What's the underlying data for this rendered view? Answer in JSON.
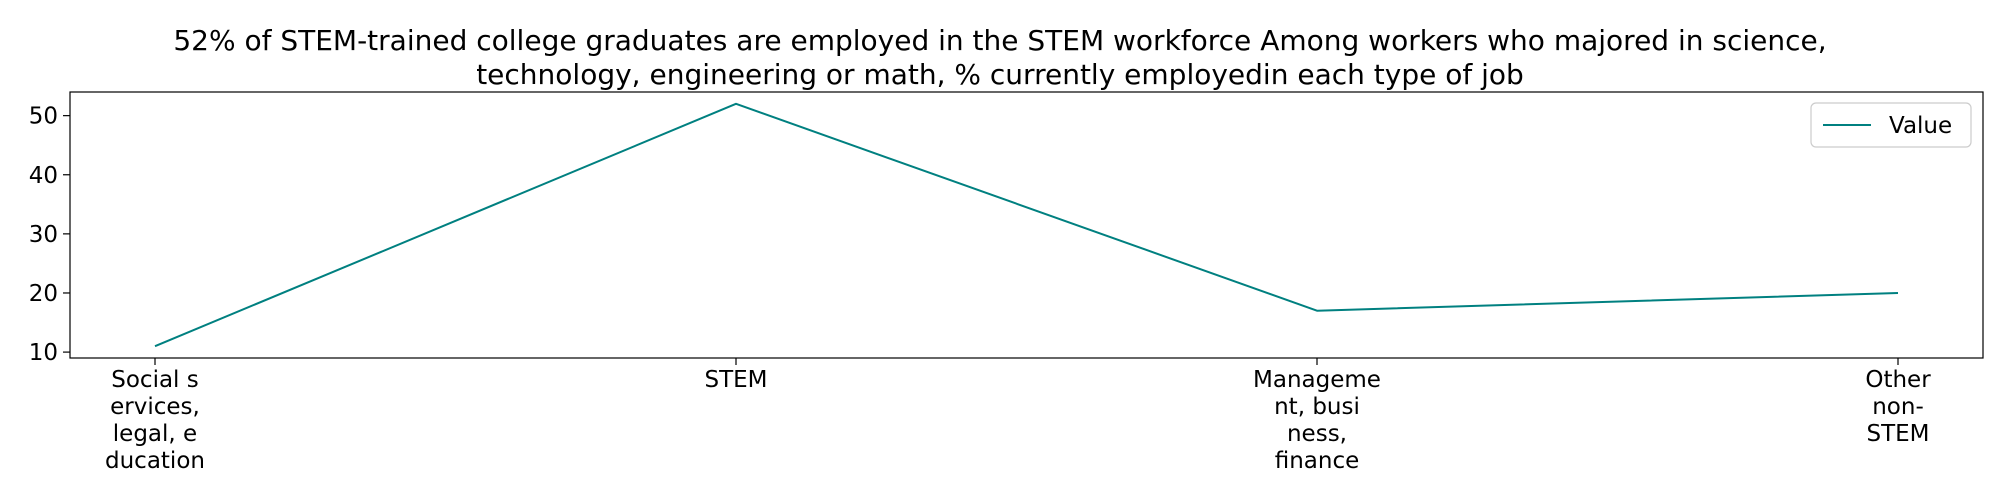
{
  "chart_data": {
    "type": "line",
    "title": "52% of STEM-trained college graduates are employed in the STEM workforce Among workers who majored in science, technology, engineering or math, % currently employedin each type of job",
    "title_lines": [
      "52% of STEM-trained college graduates are employed in the STEM workforce Among workers who majored in science,",
      "technology, engineering or math, % currently employedin each type of job"
    ],
    "categories": [
      "Social services, legal, education",
      "STEM",
      "Management, business, finance",
      "Other non-STEM"
    ],
    "category_label_lines": [
      [
        "Social s",
        "ervices,",
        "legal, e",
        "ducation"
      ],
      [
        "STEM"
      ],
      [
        "Manageme",
        "nt, busi",
        "ness,",
        "finance"
      ],
      [
        "Other",
        "non-",
        "STEM"
      ]
    ],
    "series": [
      {
        "name": "Value",
        "values": [
          11,
          52,
          17,
          20
        ],
        "color": "#008080"
      }
    ],
    "xlabel": "",
    "ylabel": "",
    "ylim": [
      9.0,
      54.0
    ],
    "yticks": [
      10,
      20,
      30,
      40,
      50
    ],
    "grid": false,
    "legend_position": "top-right"
  }
}
